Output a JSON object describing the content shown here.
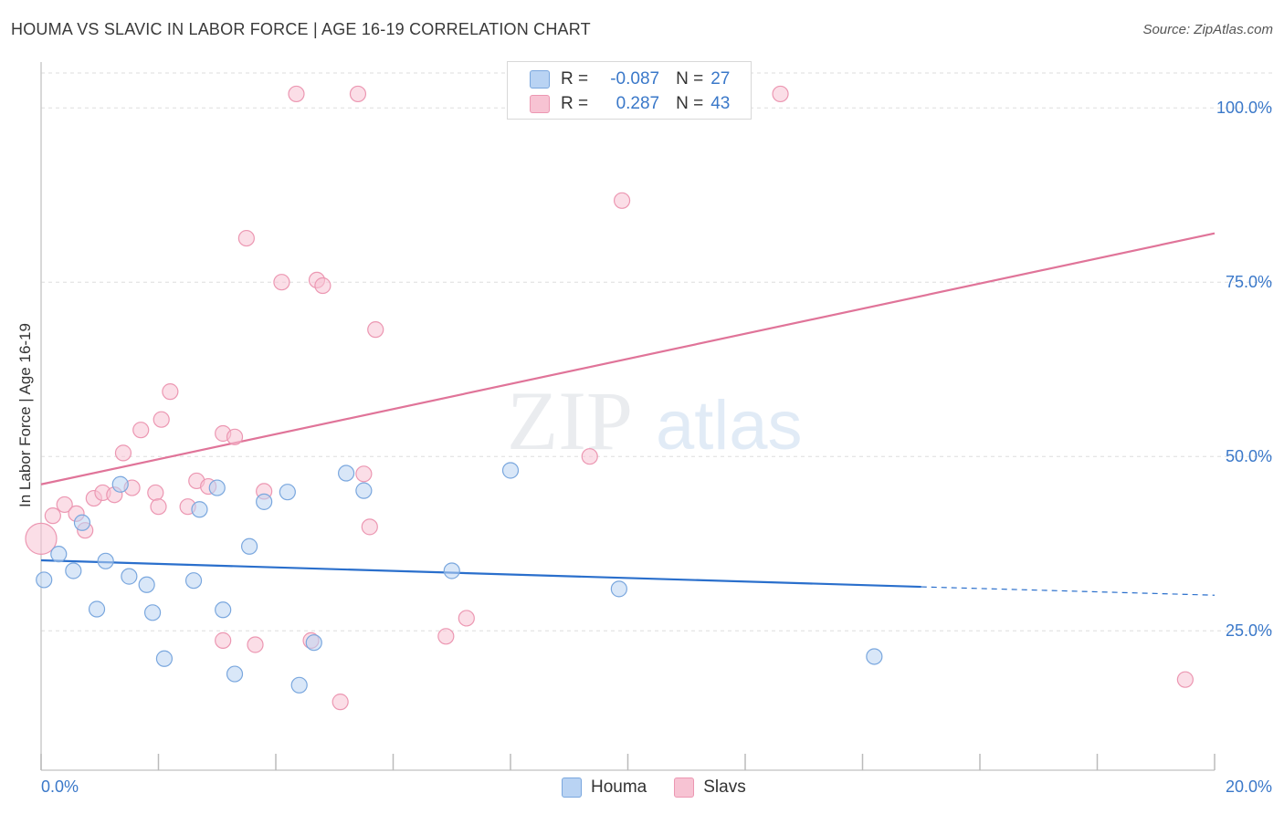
{
  "title": "HOUMA VS SLAVIC IN LABOR FORCE | AGE 16-19 CORRELATION CHART",
  "source": "Source: ZipAtlas.com",
  "watermark": {
    "zip": "ZIP",
    "atlas": "atlas"
  },
  "legend": {
    "houma": {
      "r_label": "R =",
      "r_value": "-0.087",
      "n_label": "N =",
      "n_value": "27"
    },
    "slavs": {
      "r_label": "R =",
      "r_value": "0.287",
      "n_label": "N =",
      "n_value": "43"
    }
  },
  "bottom_legend": {
    "houma": "Houma",
    "slavs": "Slavs"
  },
  "colors": {
    "houma_fill": "#b9d3f3",
    "houma_stroke": "#7aa7de",
    "houma_line": "#2a6fcc",
    "slavs_fill": "#f7c3d3",
    "slavs_stroke": "#ec97b2",
    "slavs_line": "#e07499",
    "tick_label": "#3a78c9",
    "grid": "#dddddd"
  },
  "chart_data": {
    "type": "scatter",
    "title": "HOUMA VS SLAVIC IN LABOR FORCE | AGE 16-19 CORRELATION CHART",
    "xlabel": "",
    "ylabel": "In Labor Force | Age 16-19",
    "xlim": [
      0,
      20
    ],
    "ylim": [
      5,
      105
    ],
    "x_tick_labels": [
      "0.0%",
      "20.0%"
    ],
    "y_tick_labels": [
      "25.0%",
      "50.0%",
      "75.0%",
      "100.0%"
    ],
    "y_ticks": [
      25,
      50,
      75,
      100
    ],
    "grid": true,
    "legend_position": "top-center",
    "series": [
      {
        "name": "Houma",
        "points": [
          [
            0.05,
            32.3
          ],
          [
            0.3,
            36.0
          ],
          [
            0.55,
            33.6
          ],
          [
            0.7,
            40.5
          ],
          [
            0.95,
            28.1
          ],
          [
            1.1,
            35.0
          ],
          [
            1.35,
            46.0
          ],
          [
            1.5,
            32.8
          ],
          [
            1.8,
            31.6
          ],
          [
            1.9,
            27.6
          ],
          [
            2.1,
            21.0
          ],
          [
            2.6,
            32.2
          ],
          [
            2.7,
            42.4
          ],
          [
            3.0,
            45.5
          ],
          [
            3.1,
            28.0
          ],
          [
            3.3,
            18.8
          ],
          [
            3.55,
            37.1
          ],
          [
            3.8,
            43.5
          ],
          [
            4.2,
            44.9
          ],
          [
            4.4,
            17.2
          ],
          [
            4.65,
            23.3
          ],
          [
            5.2,
            47.6
          ],
          [
            5.5,
            45.1
          ],
          [
            7.0,
            33.6
          ],
          [
            8.0,
            48.0
          ],
          [
            9.85,
            31.0
          ],
          [
            14.2,
            21.3
          ]
        ],
        "trend": {
          "x": [
            0,
            15
          ],
          "y": [
            35.1,
            31.3
          ],
          "dashed_to": [
            20,
            30.1
          ]
        }
      },
      {
        "name": "Slavs",
        "points": [
          [
            0.0,
            38.2
          ],
          [
            0.2,
            41.5
          ],
          [
            0.4,
            43.1
          ],
          [
            0.6,
            41.8
          ],
          [
            0.75,
            39.4
          ],
          [
            0.9,
            44.0
          ],
          [
            1.05,
            44.8
          ],
          [
            1.25,
            44.5
          ],
          [
            1.4,
            50.5
          ],
          [
            1.55,
            45.5
          ],
          [
            1.7,
            53.8
          ],
          [
            1.95,
            44.8
          ],
          [
            2.0,
            42.8
          ],
          [
            2.05,
            55.3
          ],
          [
            2.2,
            59.3
          ],
          [
            2.5,
            42.8
          ],
          [
            2.65,
            46.5
          ],
          [
            2.85,
            45.7
          ],
          [
            3.1,
            23.6
          ],
          [
            3.1,
            53.3
          ],
          [
            3.3,
            52.8
          ],
          [
            3.5,
            81.3
          ],
          [
            3.65,
            23.0
          ],
          [
            3.8,
            45.0
          ],
          [
            4.1,
            75.0
          ],
          [
            4.35,
            102.0
          ],
          [
            4.6,
            23.6
          ],
          [
            4.7,
            75.3
          ],
          [
            4.8,
            74.5
          ],
          [
            5.1,
            14.8
          ],
          [
            5.4,
            102.0
          ],
          [
            5.5,
            47.5
          ],
          [
            5.6,
            39.9
          ],
          [
            5.7,
            68.2
          ],
          [
            6.9,
            24.2
          ],
          [
            7.25,
            26.8
          ],
          [
            9.35,
            50.0
          ],
          [
            9.45,
            102.0
          ],
          [
            9.9,
            86.7
          ],
          [
            10.1,
            102.0
          ],
          [
            10.75,
            102.0
          ],
          [
            12.6,
            102.0
          ],
          [
            19.5,
            18.0
          ]
        ],
        "trend": {
          "x": [
            0,
            20
          ],
          "y": [
            46.0,
            82.0
          ]
        }
      }
    ]
  }
}
